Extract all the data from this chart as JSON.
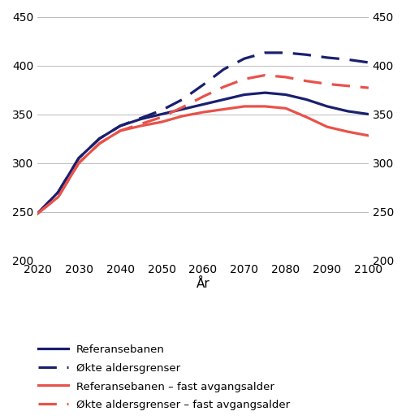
{
  "years": [
    2020,
    2025,
    2030,
    2035,
    2040,
    2045,
    2050,
    2055,
    2060,
    2065,
    2070,
    2075,
    2080,
    2085,
    2090,
    2095,
    2100
  ],
  "referansebanen": [
    248,
    270,
    305,
    325,
    338,
    345,
    350,
    355,
    360,
    365,
    370,
    372,
    370,
    365,
    358,
    353,
    350
  ],
  "okte_aldersgrenser": [
    248,
    270,
    305,
    325,
    338,
    346,
    354,
    365,
    380,
    396,
    407,
    413,
    413,
    411,
    408,
    406,
    403
  ],
  "referansebanen_fast": [
    248,
    265,
    300,
    320,
    333,
    338,
    342,
    348,
    352,
    355,
    358,
    358,
    356,
    347,
    337,
    332,
    328
  ],
  "okte_aldersgrenser_fast": [
    248,
    265,
    300,
    320,
    333,
    340,
    347,
    357,
    368,
    378,
    386,
    390,
    388,
    384,
    381,
    379,
    377
  ],
  "color_dark_blue": "#1a1f6e",
  "color_red": "#e8524a",
  "ylim": [
    200,
    450
  ],
  "yticks": [
    200,
    250,
    300,
    350,
    400,
    450
  ],
  "xticks": [
    2020,
    2030,
    2040,
    2050,
    2060,
    2070,
    2080,
    2090,
    2100
  ],
  "xlabel": "År",
  "legend_labels": [
    "Referansebanen",
    "Økte aldersgrenser",
    "Referansebanen – fast avgangsalder",
    "Økte aldersgrenser – fast avgangsalder"
  ]
}
